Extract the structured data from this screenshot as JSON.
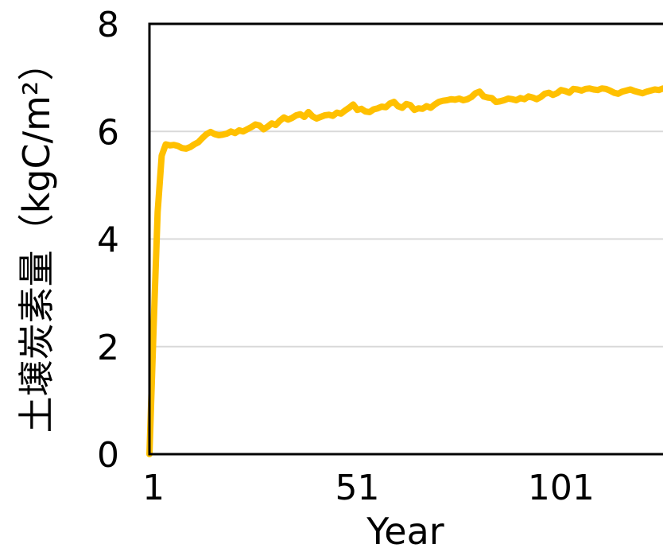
{
  "chart_data": {
    "type": "line",
    "title": "",
    "xlabel": "Year",
    "ylabel": "土壌炭素量（kgC/m²）",
    "xlim": [
      0,
      126
    ],
    "ylim": [
      0,
      8
    ],
    "grid": true,
    "x_ticks": [
      1,
      51,
      101
    ],
    "x_tick_labels": [
      "1",
      "51",
      "101"
    ],
    "y_ticks": [
      0,
      2,
      4,
      6,
      8
    ],
    "y_tick_labels": [
      "0",
      "2",
      "4",
      "6",
      "8"
    ],
    "colors": {
      "line": "#FFC000",
      "grid": "#D9D9D9",
      "axis": "#000000"
    },
    "series": [
      {
        "x": [
          0,
          1,
          2,
          3,
          4,
          5,
          6,
          7,
          8,
          9,
          10,
          11,
          12,
          13,
          14,
          15,
          16,
          17,
          18,
          19,
          20,
          21,
          22,
          23,
          24,
          25,
          26,
          27,
          28,
          29,
          30,
          31,
          32,
          33,
          34,
          35,
          36,
          37,
          38,
          39,
          40,
          41,
          42,
          43,
          44,
          45,
          46,
          47,
          48,
          49,
          50,
          51,
          52,
          53,
          54,
          55,
          56,
          57,
          58,
          59,
          60,
          61,
          62,
          63,
          64,
          65,
          66,
          67,
          68,
          69,
          70,
          71,
          72,
          73,
          74,
          75,
          76,
          77,
          78,
          79,
          80,
          81,
          82,
          83,
          84,
          85,
          86,
          87,
          88,
          89,
          90,
          91,
          92,
          93,
          94,
          95,
          96,
          97,
          98,
          99,
          100,
          101,
          102,
          103,
          104,
          105,
          106,
          107,
          108,
          109,
          110,
          111,
          112,
          113,
          114,
          115,
          116,
          117,
          118,
          119,
          120,
          121,
          122,
          123,
          124,
          125,
          126
        ],
        "values": [
          0,
          2.3,
          4.5,
          5.55,
          5.76,
          5.74,
          5.75,
          5.73,
          5.69,
          5.68,
          5.71,
          5.76,
          5.8,
          5.88,
          5.95,
          5.99,
          5.95,
          5.93,
          5.94,
          5.96,
          6.0,
          5.97,
          6.02,
          6.0,
          6.04,
          6.08,
          6.13,
          6.11,
          6.04,
          6.09,
          6.15,
          6.12,
          6.2,
          6.26,
          6.22,
          6.25,
          6.3,
          6.32,
          6.27,
          6.36,
          6.28,
          6.24,
          6.27,
          6.3,
          6.31,
          6.29,
          6.35,
          6.33,
          6.39,
          6.44,
          6.5,
          6.4,
          6.42,
          6.37,
          6.36,
          6.41,
          6.43,
          6.46,
          6.45,
          6.52,
          6.55,
          6.47,
          6.44,
          6.51,
          6.49,
          6.4,
          6.43,
          6.42,
          6.47,
          6.44,
          6.5,
          6.55,
          6.57,
          6.58,
          6.6,
          6.59,
          6.61,
          6.58,
          6.6,
          6.64,
          6.71,
          6.74,
          6.65,
          6.63,
          6.62,
          6.55,
          6.56,
          6.58,
          6.61,
          6.6,
          6.58,
          6.62,
          6.6,
          6.65,
          6.63,
          6.6,
          6.64,
          6.7,
          6.72,
          6.68,
          6.71,
          6.77,
          6.75,
          6.72,
          6.79,
          6.78,
          6.76,
          6.79,
          6.8,
          6.78,
          6.77,
          6.8,
          6.79,
          6.76,
          6.72,
          6.7,
          6.74,
          6.76,
          6.78,
          6.75,
          6.73,
          6.71,
          6.74,
          6.76,
          6.78,
          6.77,
          6.8
        ]
      }
    ]
  }
}
